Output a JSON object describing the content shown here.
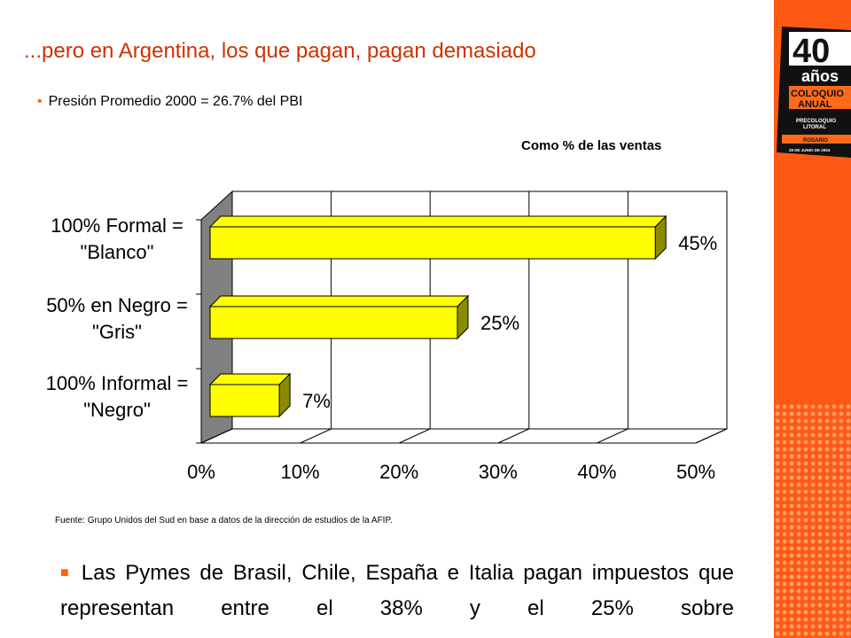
{
  "slide": {
    "title": "...pero en Argentina, los que pagan, pagan demasiado",
    "bullet": "Presión Promedio 2000 = 26.7% del PBI",
    "chart_note": "Como % de las ventas",
    "source": "Fuente: Grupo Unidos del Sud en base a datos de la dirección de estudios de la AFIP.",
    "paragraph": "Las Pymes de Brasil, Chile, España e Italia pagan impuestos que representan entre el 38% y el 25% sobre"
  },
  "badge": {
    "number": "40",
    "years": "años",
    "line1": "COLOQUIO",
    "line2": "ANUAL",
    "line3": "PRECOLOQUIO",
    "line4": "LITORAL",
    "line5": "ROSARIO",
    "line6": "29 DE JUNIO DE 2004"
  },
  "chart_data": {
    "type": "bar",
    "orientation": "horizontal",
    "categories": [
      [
        "100% Formal =",
        "\"Blanco\""
      ],
      [
        "50% en Negro =",
        "\"Gris\""
      ],
      [
        "100% Informal =",
        "\"Negro\""
      ]
    ],
    "values": [
      45,
      25,
      7
    ],
    "data_labels": [
      "45%",
      "25%",
      "7%"
    ],
    "x_ticks": [
      "0%",
      "10%",
      "20%",
      "30%",
      "40%",
      "50%"
    ],
    "xlim": [
      0,
      50
    ],
    "grid": true,
    "bar_color": "#ffff00",
    "bar_side_color": "#8b8b00",
    "wall_color": "#808080"
  }
}
